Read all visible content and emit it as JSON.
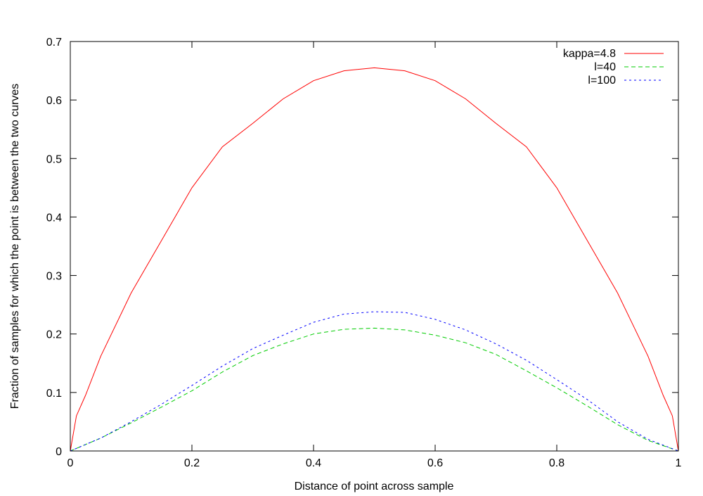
{
  "chart_data": {
    "type": "line",
    "title": "",
    "xlabel": "Distance of point across sample",
    "ylabel": "Fraction of samples for which the point is between the two curves",
    "xlim": [
      0,
      1
    ],
    "ylim": [
      0,
      0.7
    ],
    "xticks": [
      "0",
      "0.2",
      "0.4",
      "0.6",
      "0.8",
      "1"
    ],
    "yticks": [
      "0",
      "0.1",
      "0.2",
      "0.3",
      "0.4",
      "0.5",
      "0.6",
      "0.7"
    ],
    "grid": false,
    "legend_position": "top-right",
    "series": [
      {
        "name": "kappa=4.8",
        "color": "#ff0000",
        "style": "solid",
        "x": [
          0,
          0.01,
          0.025,
          0.05,
          0.1,
          0.15,
          0.2,
          0.25,
          0.3,
          0.35,
          0.4,
          0.45,
          0.5,
          0.55,
          0.6,
          0.65,
          0.7,
          0.75,
          0.8,
          0.85,
          0.9,
          0.95,
          0.975,
          0.99,
          1
        ],
        "y": [
          0,
          0.06,
          0.095,
          0.162,
          0.27,
          0.36,
          0.45,
          0.52,
          0.56,
          0.602,
          0.633,
          0.65,
          0.655,
          0.65,
          0.633,
          0.602,
          0.56,
          0.52,
          0.45,
          0.36,
          0.27,
          0.162,
          0.095,
          0.06,
          0
        ]
      },
      {
        "name": "l=40",
        "color": "#00cc00",
        "style": "dashed",
        "x": [
          0,
          0.05,
          0.1,
          0.15,
          0.2,
          0.25,
          0.3,
          0.35,
          0.4,
          0.45,
          0.5,
          0.55,
          0.6,
          0.65,
          0.7,
          0.75,
          0.8,
          0.85,
          0.9,
          0.95,
          1
        ],
        "y": [
          0,
          0.022,
          0.048,
          0.075,
          0.103,
          0.135,
          0.163,
          0.183,
          0.2,
          0.208,
          0.21,
          0.207,
          0.198,
          0.185,
          0.165,
          0.137,
          0.108,
          0.077,
          0.045,
          0.018,
          0
        ]
      },
      {
        "name": "l=100",
        "color": "#0000ff",
        "style": "dotted",
        "x": [
          0,
          0.05,
          0.1,
          0.15,
          0.2,
          0.25,
          0.3,
          0.35,
          0.4,
          0.45,
          0.5,
          0.55,
          0.6,
          0.65,
          0.7,
          0.75,
          0.8,
          0.85,
          0.9,
          0.95,
          1
        ],
        "y": [
          0,
          0.022,
          0.05,
          0.08,
          0.112,
          0.145,
          0.175,
          0.198,
          0.22,
          0.234,
          0.238,
          0.237,
          0.225,
          0.207,
          0.183,
          0.155,
          0.122,
          0.088,
          0.05,
          0.02,
          0
        ]
      }
    ]
  }
}
